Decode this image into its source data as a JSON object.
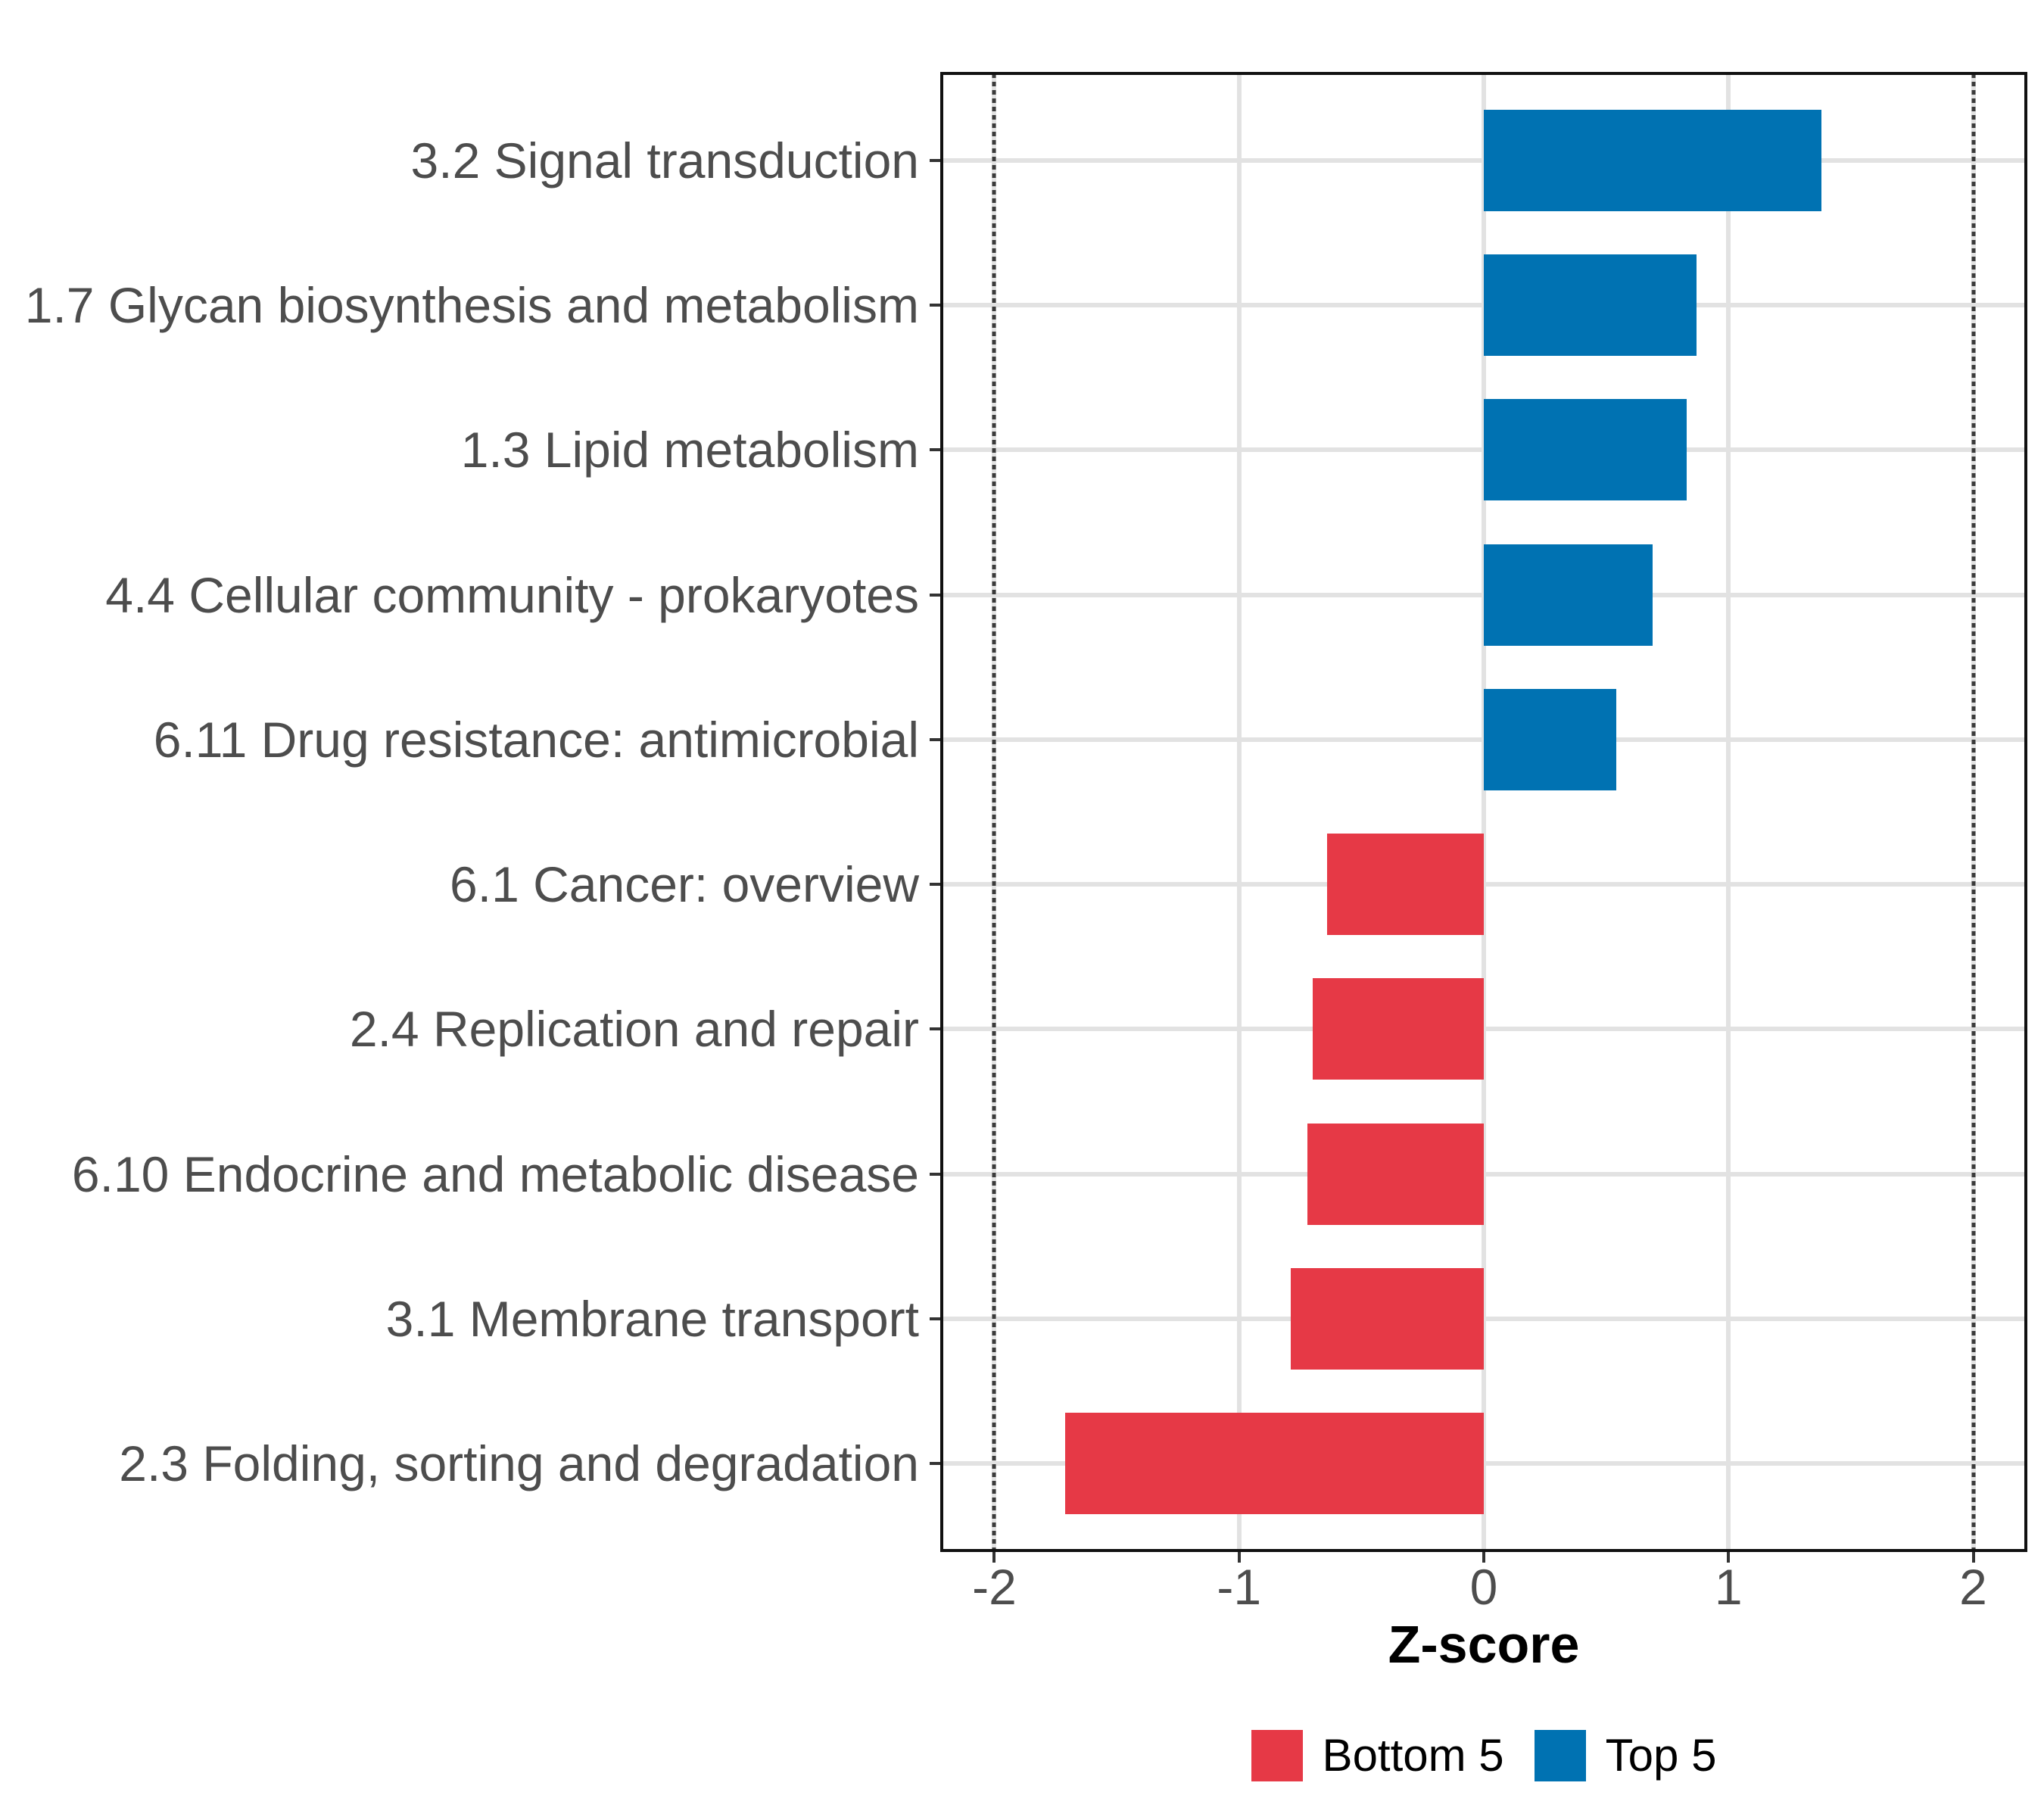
{
  "chart_data": {
    "type": "bar",
    "orientation": "horizontal",
    "title": "",
    "xlabel": "Z-score",
    "ylabel": "",
    "xlim": [
      -2.215,
      2.215
    ],
    "x_ticks": [
      -2,
      -1,
      0,
      1,
      2
    ],
    "x_tick_labels": [
      "-2",
      "-1",
      "0",
      "1",
      "2"
    ],
    "reference_lines": [
      -2,
      2
    ],
    "reference_line_style": "dotted",
    "grid": "major-only",
    "legend_position": "bottom",
    "bar_width_fraction": 0.7,
    "categories": [
      "3.2 Signal transduction",
      "1.7 Glycan biosynthesis and metabolism",
      "1.3 Lipid metabolism",
      "4.4 Cellular community - prokaryotes",
      "6.11 Drug resistance: antimicrobial",
      "6.1 Cancer: overview",
      "2.4 Replication and repair",
      "6.10 Endocrine and metabolic disease",
      "3.1 Membrane transport",
      "2.3 Folding, sorting and degradation"
    ],
    "bars": [
      {
        "label": "3.2 Signal transduction",
        "value": 1.38,
        "group": "Top 5"
      },
      {
        "label": "1.7 Glycan biosynthesis and metabolism",
        "value": 0.87,
        "group": "Top 5"
      },
      {
        "label": "1.3 Lipid metabolism",
        "value": 0.83,
        "group": "Top 5"
      },
      {
        "label": "4.4 Cellular community - prokaryotes",
        "value": 0.69,
        "group": "Top 5"
      },
      {
        "label": "6.11 Drug resistance: antimicrobial",
        "value": 0.54,
        "group": "Top 5"
      },
      {
        "label": "6.1 Cancer: overview",
        "value": -0.64,
        "group": "Bottom 5"
      },
      {
        "label": "2.4 Replication and repair",
        "value": -0.7,
        "group": "Bottom 5"
      },
      {
        "label": "6.10 Endocrine and metabolic disease",
        "value": -0.72,
        "group": "Bottom 5"
      },
      {
        "label": "3.1 Membrane transport",
        "value": -0.79,
        "group": "Bottom 5"
      },
      {
        "label": "2.3 Folding, sorting and degradation",
        "value": -1.71,
        "group": "Bottom 5"
      }
    ],
    "colors": {
      "Bottom 5": "#e63946",
      "Top 5": "#0072b2"
    },
    "legend": [
      {
        "label": "Bottom 5",
        "color": "#e63946"
      },
      {
        "label": "Top 5",
        "color": "#0072b2"
      }
    ]
  }
}
